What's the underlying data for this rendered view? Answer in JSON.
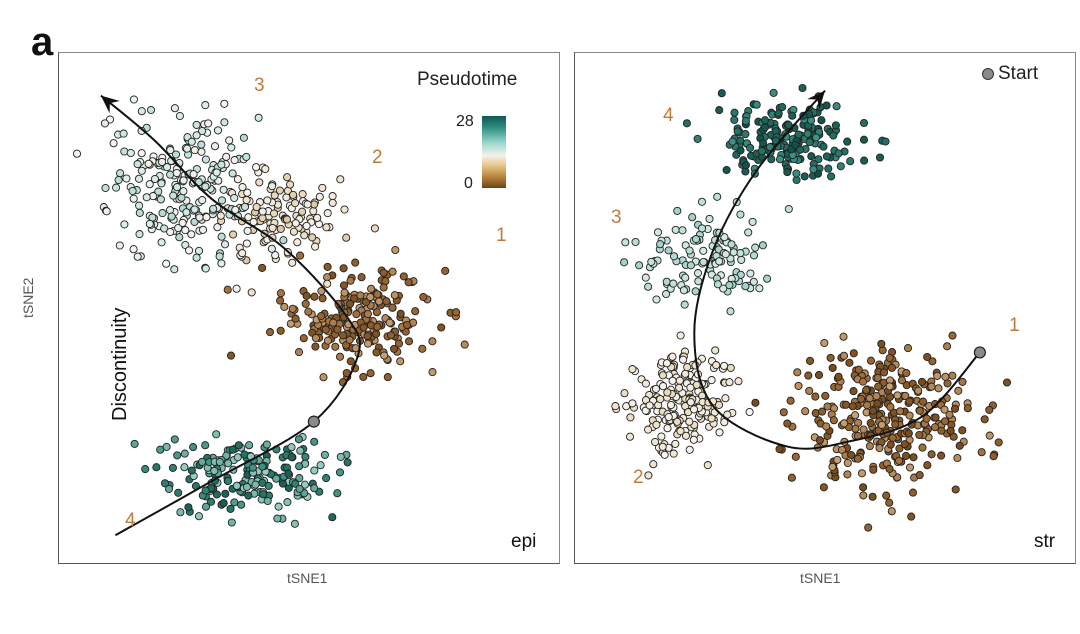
{
  "figure": {
    "panel_letter": "a",
    "legend": {
      "title": "Pseudotime",
      "max_label": "28",
      "min_label": "0",
      "start_label": "Start"
    },
    "colors": {
      "low": "#6e4414",
      "mid": "#f4f2ee",
      "high": "#0e5a52",
      "cluster_label": "#c07a3a",
      "start_point": "#8a8a8a"
    }
  },
  "chart_data": [
    {
      "type": "scatter",
      "title": "epi",
      "xlabel": "tSNE1",
      "ylabel": "tSNE2",
      "annotation": "Discontinuity",
      "color_by": "Pseudotime",
      "color_range": [
        0,
        28
      ],
      "xlim": [
        0,
        100
      ],
      "ylim": [
        0,
        100
      ],
      "clusters": [
        {
          "label": "1",
          "center": [
            60,
            48
          ],
          "spread": [
            14,
            9
          ],
          "n": 230,
          "pseudotime": [
            2,
            9
          ]
        },
        {
          "label": "2",
          "center": [
            42,
            68
          ],
          "spread": [
            12,
            9
          ],
          "n": 120,
          "pseudotime": [
            11,
            15
          ]
        },
        {
          "label": "3",
          "center": [
            24,
            74
          ],
          "spread": [
            14,
            13
          ],
          "n": 230,
          "pseudotime": [
            14,
            19
          ]
        },
        {
          "label": "4",
          "center": [
            37,
            16
          ],
          "spread": [
            16,
            7
          ],
          "n": 200,
          "pseudotime": [
            20,
            27
          ]
        }
      ],
      "trajectory": [
        [
          10,
          4
        ],
        [
          30,
          15
        ],
        [
          51,
          27
        ],
        [
          60,
          40
        ],
        [
          58,
          48
        ],
        [
          45,
          62
        ],
        [
          30,
          72
        ],
        [
          18,
          84
        ],
        [
          7,
          93
        ]
      ],
      "start": [
        51,
        27
      ]
    },
    {
      "type": "scatter",
      "title": "str",
      "xlabel": "tSNE1",
      "ylabel": "tSNE2",
      "color_by": "Pseudotime",
      "color_range": [
        0,
        28
      ],
      "xlim": [
        0,
        100
      ],
      "ylim": [
        0,
        100
      ],
      "clusters": [
        {
          "label": "1",
          "center": [
            62,
            28
          ],
          "spread": [
            16,
            13
          ],
          "n": 330,
          "pseudotime": [
            1,
            9
          ]
        },
        {
          "label": "2",
          "center": [
            20,
            31
          ],
          "spread": [
            10,
            9
          ],
          "n": 200,
          "pseudotime": [
            12,
            15
          ]
        },
        {
          "label": "3",
          "center": [
            26,
            61
          ],
          "spread": [
            12,
            8
          ],
          "n": 120,
          "pseudotime": [
            17,
            20
          ]
        },
        {
          "label": "4",
          "center": [
            43,
            84
          ],
          "spread": [
            13,
            7
          ],
          "n": 200,
          "pseudotime": [
            24,
            28
          ]
        }
      ],
      "trajectory": [
        [
          82,
          41
        ],
        [
          70,
          28
        ],
        [
          55,
          23
        ],
        [
          42,
          22
        ],
        [
          27,
          30
        ],
        [
          23,
          45
        ],
        [
          27,
          62
        ],
        [
          36,
          78
        ],
        [
          50,
          94
        ]
      ],
      "start": [
        82,
        41
      ]
    }
  ],
  "labels": {
    "epi": {
      "c1": "1",
      "c2": "2",
      "c3": "3",
      "c4": "4",
      "name": "epi",
      "xlabel": "tSNE1",
      "ylabel": "tSNE2",
      "annotation": "Discontinuity"
    },
    "str": {
      "c1": "1",
      "c2": "2",
      "c3": "3",
      "c4": "4",
      "name": "str",
      "xlabel": "tSNE1"
    }
  }
}
